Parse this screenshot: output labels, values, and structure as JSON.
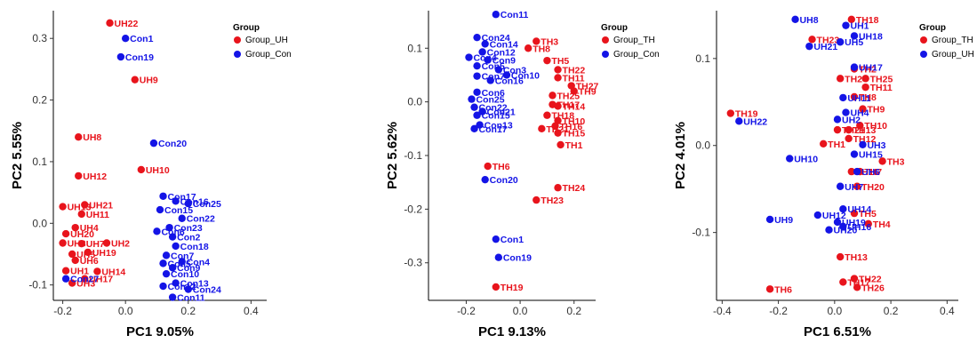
{
  "chart_data": [
    {
      "type": "scatter",
      "xlabel": "PC1 9.05%",
      "ylabel": "PC2 5.55%",
      "xticks": [
        -0.2,
        0.0,
        0.2,
        0.4
      ],
      "yticks": [
        -0.1,
        0.0,
        0.1,
        0.2,
        0.3
      ],
      "xlim": [
        -0.23,
        0.45
      ],
      "ylim": [
        -0.125,
        0.345
      ],
      "legend": {
        "title": "Group",
        "position": "right",
        "entries": [
          "Group_UH",
          "Group_Con"
        ]
      },
      "series": [
        {
          "name": "Group_UH",
          "color": "#e8141c",
          "points": [
            {
              "x": -0.05,
              "y": 0.325,
              "label": "UH22"
            },
            {
              "x": 0.03,
              "y": 0.233,
              "label": "UH9"
            },
            {
              "x": -0.15,
              "y": 0.14,
              "label": "UH8"
            },
            {
              "x": 0.05,
              "y": 0.087,
              "label": "UH10"
            },
            {
              "x": -0.15,
              "y": 0.077,
              "label": "UH12"
            },
            {
              "x": -0.13,
              "y": 0.03,
              "label": "UH21"
            },
            {
              "x": -0.2,
              "y": 0.027,
              "label": "UH13"
            },
            {
              "x": -0.14,
              "y": 0.015,
              "label": "UH11"
            },
            {
              "x": -0.16,
              "y": -0.007,
              "label": "UH4"
            },
            {
              "x": -0.19,
              "y": -0.017,
              "label": "UH20"
            },
            {
              "x": -0.2,
              "y": -0.032,
              "label": "UH3"
            },
            {
              "x": -0.14,
              "y": -0.033,
              "label": "UH7"
            },
            {
              "x": -0.06,
              "y": -0.032,
              "label": "UH2"
            },
            {
              "x": -0.12,
              "y": -0.047,
              "label": "UH19"
            },
            {
              "x": -0.17,
              "y": -0.05,
              "label": "UH5"
            },
            {
              "x": -0.16,
              "y": -0.06,
              "label": "UH6"
            },
            {
              "x": -0.09,
              "y": -0.078,
              "label": "UH14"
            },
            {
              "x": -0.13,
              "y": -0.09,
              "label": "UH17"
            },
            {
              "x": -0.19,
              "y": -0.077,
              "label": "UH1"
            },
            {
              "x": -0.17,
              "y": -0.097,
              "label": "UH3"
            }
          ]
        },
        {
          "name": "Group_Con",
          "color": "#1414e6",
          "points": [
            {
              "x": 0.0,
              "y": 0.3,
              "label": "Con1"
            },
            {
              "x": -0.015,
              "y": 0.27,
              "label": "Con19"
            },
            {
              "x": 0.09,
              "y": 0.13,
              "label": "Con20"
            },
            {
              "x": 0.12,
              "y": 0.044,
              "label": "Con17"
            },
            {
              "x": 0.16,
              "y": 0.036,
              "label": "Con16"
            },
            {
              "x": 0.2,
              "y": 0.032,
              "label": "Con25"
            },
            {
              "x": 0.11,
              "y": 0.022,
              "label": "Con15"
            },
            {
              "x": 0.18,
              "y": 0.008,
              "label": "Con22"
            },
            {
              "x": 0.14,
              "y": -0.007,
              "label": "Con23"
            },
            {
              "x": 0.1,
              "y": -0.013,
              "label": "Con6"
            },
            {
              "x": 0.15,
              "y": -0.022,
              "label": "Con2"
            },
            {
              "x": 0.16,
              "y": -0.037,
              "label": "Con18"
            },
            {
              "x": 0.13,
              "y": -0.052,
              "label": "Con7"
            },
            {
              "x": 0.12,
              "y": -0.065,
              "label": "Con5"
            },
            {
              "x": 0.18,
              "y": -0.062,
              "label": "Con4"
            },
            {
              "x": 0.15,
              "y": -0.072,
              "label": "Con9"
            },
            {
              "x": 0.13,
              "y": -0.082,
              "label": "Con10"
            },
            {
              "x": 0.16,
              "y": -0.097,
              "label": "Con13"
            },
            {
              "x": 0.12,
              "y": -0.102,
              "label": "Con12"
            },
            {
              "x": 0.2,
              "y": -0.107,
              "label": "Con24"
            },
            {
              "x": 0.15,
              "y": -0.12,
              "label": "Con11"
            },
            {
              "x": -0.19,
              "y": -0.09,
              "label": "Con27"
            }
          ]
        }
      ]
    },
    {
      "type": "scatter",
      "xlabel": "PC1 9.13%",
      "ylabel": "PC2 5.62%",
      "xticks": [
        -0.2,
        0.0,
        0.2
      ],
      "yticks": [
        -0.3,
        -0.2,
        -0.1,
        0.0,
        0.1
      ],
      "xlim": [
        -0.34,
        0.28
      ],
      "ylim": [
        -0.37,
        0.17
      ],
      "legend": {
        "title": "Group",
        "position": "right",
        "entries": [
          "Group_TH",
          "Group_Con"
        ]
      },
      "series": [
        {
          "name": "Group_TH",
          "color": "#e8141c",
          "points": [
            {
              "x": 0.06,
              "y": 0.113,
              "label": "TH3"
            },
            {
              "x": 0.03,
              "y": 0.1,
              "label": "TH8"
            },
            {
              "x": 0.1,
              "y": 0.077,
              "label": "TH5"
            },
            {
              "x": 0.14,
              "y": 0.06,
              "label": "TH22"
            },
            {
              "x": 0.14,
              "y": 0.045,
              "label": "TH11"
            },
            {
              "x": 0.19,
              "y": 0.03,
              "label": "TH27"
            },
            {
              "x": 0.2,
              "y": 0.02,
              "label": "TH9"
            },
            {
              "x": 0.12,
              "y": 0.012,
              "label": "TH25"
            },
            {
              "x": 0.12,
              "y": -0.005,
              "label": "TH17"
            },
            {
              "x": 0.14,
              "y": -0.008,
              "label": "TH14"
            },
            {
              "x": 0.1,
              "y": -0.025,
              "label": "TH18"
            },
            {
              "x": 0.14,
              "y": -0.035,
              "label": "TH10"
            },
            {
              "x": 0.13,
              "y": -0.045,
              "label": "TH16"
            },
            {
              "x": 0.08,
              "y": -0.05,
              "label": "TH21"
            },
            {
              "x": 0.14,
              "y": -0.058,
              "label": "TH15"
            },
            {
              "x": 0.15,
              "y": -0.08,
              "label": "TH1"
            },
            {
              "x": -0.12,
              "y": -0.12,
              "label": "TH6"
            },
            {
              "x": 0.14,
              "y": -0.16,
              "label": "TH24"
            },
            {
              "x": 0.06,
              "y": -0.183,
              "label": "TH23"
            },
            {
              "x": -0.09,
              "y": -0.345,
              "label": "TH19"
            }
          ]
        },
        {
          "name": "Group_Con",
          "color": "#1414e6",
          "points": [
            {
              "x": -0.09,
              "y": 0.163,
              "label": "Con11"
            },
            {
              "x": -0.16,
              "y": 0.12,
              "label": "Con24"
            },
            {
              "x": -0.13,
              "y": 0.108,
              "label": "Con14"
            },
            {
              "x": -0.14,
              "y": 0.093,
              "label": "Con12"
            },
            {
              "x": -0.19,
              "y": 0.083,
              "label": "Con4"
            },
            {
              "x": -0.12,
              "y": 0.078,
              "label": "Con9"
            },
            {
              "x": -0.16,
              "y": 0.067,
              "label": "Con5"
            },
            {
              "x": -0.08,
              "y": 0.06,
              "label": "Con3"
            },
            {
              "x": -0.16,
              "y": 0.048,
              "label": "Con7"
            },
            {
              "x": -0.05,
              "y": 0.05,
              "label": "Con10"
            },
            {
              "x": -0.11,
              "y": 0.04,
              "label": "Con16"
            },
            {
              "x": -0.16,
              "y": 0.018,
              "label": "Con6"
            },
            {
              "x": -0.18,
              "y": 0.005,
              "label": "Con25"
            },
            {
              "x": -0.17,
              "y": -0.01,
              "label": "Con22"
            },
            {
              "x": -0.14,
              "y": -0.018,
              "label": "Con21"
            },
            {
              "x": -0.16,
              "y": -0.025,
              "label": "Con15"
            },
            {
              "x": -0.15,
              "y": -0.043,
              "label": "Con13"
            },
            {
              "x": -0.17,
              "y": -0.05,
              "label": "Con17"
            },
            {
              "x": -0.13,
              "y": -0.145,
              "label": "Con20"
            },
            {
              "x": -0.09,
              "y": -0.256,
              "label": "Con1"
            },
            {
              "x": -0.08,
              "y": -0.29,
              "label": "Con19"
            }
          ]
        }
      ]
    },
    {
      "type": "scatter",
      "xlabel": "PC1  6.51%",
      "ylabel": "PC2 4.01%",
      "xticks": [
        -0.4,
        -0.2,
        0.0,
        0.2,
        0.4
      ],
      "yticks": [
        -0.1,
        0.0,
        0.1
      ],
      "xlim": [
        -0.42,
        0.44
      ],
      "ylim": [
        -0.178,
        0.155
      ],
      "legend": {
        "title": "Group",
        "position": "top-right",
        "entries": [
          "Group_TH",
          "Group_UH"
        ]
      },
      "series": [
        {
          "name": "Group_TH",
          "color": "#e8141c",
          "points": [
            {
              "x": 0.06,
              "y": 0.145,
              "label": "TH18"
            },
            {
              "x": -0.08,
              "y": 0.122,
              "label": "TH23"
            },
            {
              "x": 0.07,
              "y": 0.088,
              "label": "TH2"
            },
            {
              "x": 0.11,
              "y": 0.077,
              "label": "TH25"
            },
            {
              "x": 0.02,
              "y": 0.077,
              "label": "TH24"
            },
            {
              "x": 0.11,
              "y": 0.067,
              "label": "TH11"
            },
            {
              "x": 0.07,
              "y": 0.056,
              "label": "TH8"
            },
            {
              "x": 0.1,
              "y": 0.042,
              "label": "TH9"
            },
            {
              "x": -0.37,
              "y": 0.037,
              "label": "TH19"
            },
            {
              "x": 0.09,
              "y": 0.023,
              "label": "TH10"
            },
            {
              "x": 0.01,
              "y": 0.018,
              "label": "TH21"
            },
            {
              "x": 0.05,
              "y": 0.018,
              "label": "TH13"
            },
            {
              "x": 0.05,
              "y": 0.008,
              "label": "TH12"
            },
            {
              "x": -0.04,
              "y": 0.002,
              "label": "TH1"
            },
            {
              "x": 0.17,
              "y": -0.018,
              "label": "TH3"
            },
            {
              "x": 0.09,
              "y": -0.03,
              "label": "TH7"
            },
            {
              "x": 0.06,
              "y": -0.03,
              "label": "TH16"
            },
            {
              "x": 0.08,
              "y": -0.047,
              "label": "TH20"
            },
            {
              "x": 0.07,
              "y": -0.078,
              "label": "TH5"
            },
            {
              "x": 0.12,
              "y": -0.09,
              "label": "TH4"
            },
            {
              "x": 0.02,
              "y": -0.128,
              "label": "TH13"
            },
            {
              "x": 0.07,
              "y": -0.153,
              "label": "TH22"
            },
            {
              "x": 0.03,
              "y": -0.157,
              "label": "TH17"
            },
            {
              "x": 0.08,
              "y": -0.163,
              "label": "TH26"
            },
            {
              "x": -0.23,
              "y": -0.165,
              "label": "TH6"
            }
          ]
        },
        {
          "name": "Group_UH",
          "color": "#1414e6",
          "points": [
            {
              "x": -0.14,
              "y": 0.145,
              "label": "UH8"
            },
            {
              "x": 0.04,
              "y": 0.138,
              "label": "UH1"
            },
            {
              "x": 0.07,
              "y": 0.126,
              "label": "UH18"
            },
            {
              "x": 0.02,
              "y": 0.119,
              "label": "UH5"
            },
            {
              "x": -0.09,
              "y": 0.114,
              "label": "UH21"
            },
            {
              "x": 0.07,
              "y": 0.09,
              "label": "UH17"
            },
            {
              "x": 0.03,
              "y": 0.055,
              "label": "UH11"
            },
            {
              "x": 0.04,
              "y": 0.038,
              "label": "UH4"
            },
            {
              "x": -0.34,
              "y": 0.028,
              "label": "UH22"
            },
            {
              "x": 0.01,
              "y": 0.03,
              "label": "UH2"
            },
            {
              "x": 0.1,
              "y": 0.001,
              "label": "UH3"
            },
            {
              "x": 0.07,
              "y": -0.01,
              "label": "UH15"
            },
            {
              "x": -0.16,
              "y": -0.015,
              "label": "UH10"
            },
            {
              "x": 0.08,
              "y": -0.03,
              "label": "UH6"
            },
            {
              "x": 0.02,
              "y": -0.047,
              "label": "UH7"
            },
            {
              "x": 0.03,
              "y": -0.073,
              "label": "UH14"
            },
            {
              "x": -0.06,
              "y": -0.08,
              "label": "UH12"
            },
            {
              "x": -0.23,
              "y": -0.085,
              "label": "UH9"
            },
            {
              "x": 0.01,
              "y": -0.088,
              "label": "UH19"
            },
            {
              "x": 0.03,
              "y": -0.093,
              "label": "UH16"
            },
            {
              "x": -0.02,
              "y": -0.097,
              "label": "UH20"
            }
          ]
        }
      ]
    }
  ]
}
